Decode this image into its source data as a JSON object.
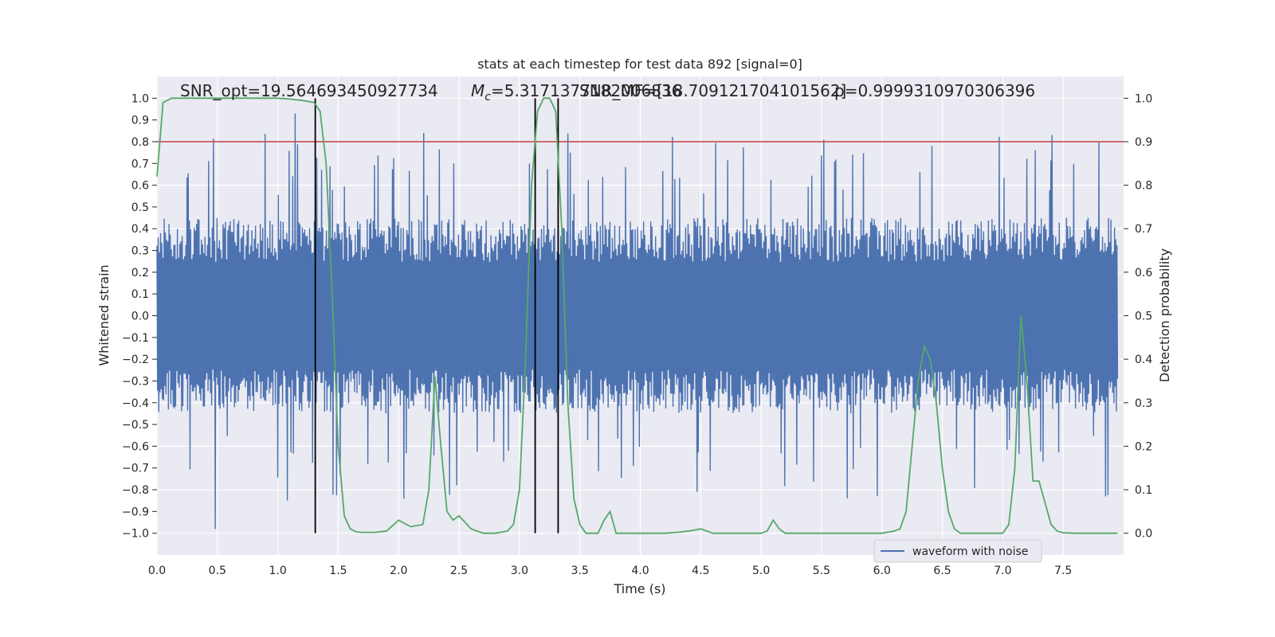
{
  "chart_data": {
    "type": "line",
    "title": "stats at each timestep for test data 892 [signal=0]",
    "xlabel": "Time (s)",
    "ylabel_left": "Whitened strain",
    "ylabel_right": "Detection probability",
    "xlim": [
      0.0,
      8.0
    ],
    "ylim_left": [
      -1.1,
      1.1
    ],
    "ylim_right": [
      -0.05,
      1.05
    ],
    "x_ticks": [
      0.0,
      0.5,
      1.0,
      1.5,
      2.0,
      2.5,
      3.0,
      3.5,
      4.0,
      4.5,
      5.0,
      5.5,
      6.0,
      6.5,
      7.0,
      7.5
    ],
    "x_tick_labels": [
      "0.0",
      "0.5",
      "1.0",
      "1.5",
      "2.0",
      "2.5",
      "3.0",
      "3.5",
      "4.0",
      "4.5",
      "5.0",
      "5.5",
      "6.0",
      "6.5",
      "7.0",
      "7.5"
    ],
    "y_left_ticks": [
      -1.0,
      -0.9,
      -0.8,
      -0.7,
      -0.6,
      -0.5,
      -0.4,
      -0.3,
      -0.2,
      -0.1,
      0.0,
      0.1,
      0.2,
      0.3,
      0.4,
      0.5,
      0.6,
      0.7,
      0.8,
      0.9,
      1.0
    ],
    "y_left_tick_labels": [
      "−1.0",
      "−0.9",
      "−0.8",
      "−0.7",
      "−0.6",
      "−0.5",
      "−0.4",
      "−0.3",
      "−0.2",
      "−0.1",
      "0.0",
      "0.1",
      "0.2",
      "0.3",
      "0.4",
      "0.5",
      "0.6",
      "0.7",
      "0.8",
      "0.9",
      "1.0"
    ],
    "y_right_ticks": [
      0.0,
      0.1,
      0.2,
      0.3,
      0.4,
      0.5,
      0.6,
      0.7,
      0.8,
      0.9,
      1.0
    ],
    "y_right_tick_labels": [
      "0.0",
      "0.1",
      "0.2",
      "0.3",
      "0.4",
      "0.5",
      "0.6",
      "0.7",
      "0.8",
      "0.9",
      "1.0"
    ],
    "annotations": {
      "snr_opt": "SNR_opt=19.564693450927734",
      "mc": "=5.3171377182006836",
      "mc_symbol": "M",
      "mc_sub": "c",
      "snr_mf": "SNR_MF=[18.709121704101562]",
      "p": "p=0.9999310970306396"
    },
    "legend": {
      "label": "waveform with noise",
      "position": "bottom-right"
    },
    "threshold": {
      "value": 0.9,
      "axis": "right",
      "color": "#c44e52"
    },
    "vertical_lines": [
      1.31,
      3.13,
      3.32
    ],
    "waveform": {
      "name": "waveform with noise",
      "color": "#4c72b0",
      "duration": 7.95,
      "samples": 1600,
      "typical_envelope": 0.45,
      "max_positive_peak": 0.93,
      "min_negative_peak": -0.98
    },
    "detection_probability": {
      "name": "Detection probability",
      "color": "#55a868",
      "x": [
        0.0,
        0.05,
        0.12,
        0.2,
        0.3,
        0.5,
        0.8,
        1.0,
        1.1,
        1.2,
        1.3,
        1.35,
        1.4,
        1.45,
        1.5,
        1.55,
        1.6,
        1.65,
        1.7,
        1.8,
        1.9,
        2.0,
        2.1,
        2.2,
        2.25,
        2.3,
        2.35,
        2.4,
        2.45,
        2.5,
        2.55,
        2.6,
        2.7,
        2.8,
        2.9,
        2.95,
        3.0,
        3.05,
        3.1,
        3.15,
        3.2,
        3.25,
        3.3,
        3.35,
        3.4,
        3.45,
        3.5,
        3.55,
        3.6,
        3.65,
        3.7,
        3.75,
        3.8,
        3.85,
        3.9,
        4.0,
        4.1,
        4.2,
        4.3,
        4.4,
        4.5,
        4.6,
        4.7,
        4.8,
        4.9,
        5.0,
        5.05,
        5.1,
        5.15,
        5.2,
        5.3,
        5.4,
        5.5,
        5.6,
        5.7,
        5.8,
        5.9,
        6.0,
        6.1,
        6.15,
        6.2,
        6.25,
        6.3,
        6.35,
        6.4,
        6.45,
        6.5,
        6.55,
        6.6,
        6.65,
        6.7,
        6.8,
        6.9,
        7.0,
        7.05,
        7.1,
        7.15,
        7.2,
        7.25,
        7.3,
        7.35,
        7.4,
        7.45,
        7.5,
        7.6,
        7.7,
        7.8,
        7.9,
        7.95
      ],
      "y": [
        0.82,
        0.99,
        1.0,
        1.0,
        1.0,
        1.0,
        1.0,
        1.0,
        0.998,
        0.995,
        0.99,
        0.97,
        0.85,
        0.55,
        0.2,
        0.04,
        0.01,
        0.003,
        0.002,
        0.002,
        0.005,
        0.03,
        0.015,
        0.02,
        0.1,
        0.36,
        0.2,
        0.05,
        0.03,
        0.04,
        0.025,
        0.01,
        0.0,
        0.0,
        0.005,
        0.02,
        0.1,
        0.4,
        0.8,
        0.97,
        1.0,
        1.0,
        0.97,
        0.7,
        0.3,
        0.08,
        0.02,
        0.0,
        0.0,
        0.0,
        0.03,
        0.05,
        0.0,
        0.0,
        0.0,
        0.0,
        0.0,
        0.0,
        0.002,
        0.005,
        0.01,
        0.0,
        0.0,
        0.0,
        0.0,
        0.0,
        0.005,
        0.03,
        0.01,
        0.0,
        0.0,
        0.0,
        0.0,
        0.0,
        0.0,
        0.0,
        0.0,
        0.0,
        0.005,
        0.01,
        0.05,
        0.2,
        0.35,
        0.43,
        0.4,
        0.3,
        0.15,
        0.05,
        0.01,
        0.0,
        0.0,
        0.0,
        0.0,
        0.0,
        0.02,
        0.15,
        0.5,
        0.35,
        0.12,
        0.12,
        0.07,
        0.02,
        0.005,
        0.001,
        0.0,
        0.0,
        0.0,
        0.0,
        0.0
      ]
    }
  }
}
